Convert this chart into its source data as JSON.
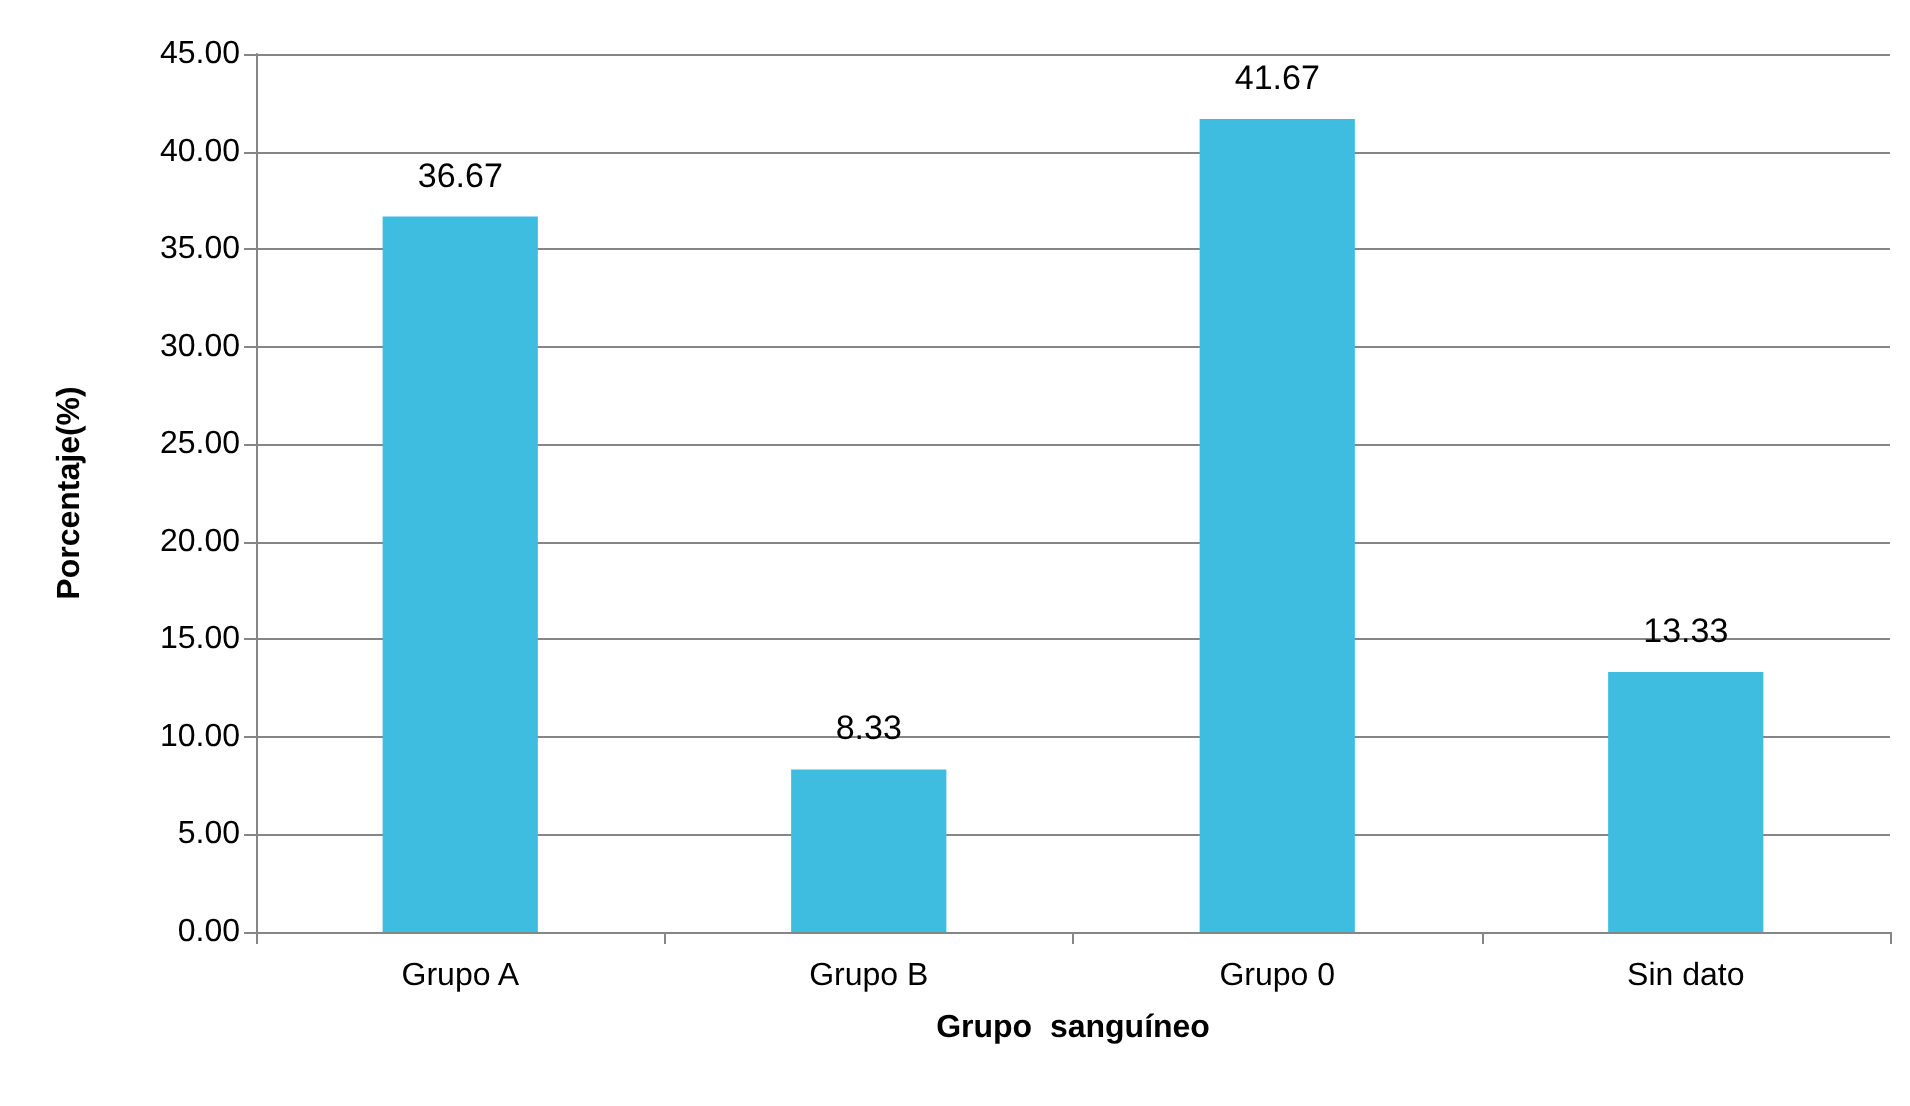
{
  "chart_data": {
    "type": "bar",
    "xlabel": "Grupo  sanguíneo",
    "ylabel": "Porcentaje(%)",
    "categories": [
      "Grupo A",
      "Grupo B",
      "Grupo 0",
      "Sin dato"
    ],
    "values": [
      36.67,
      8.33,
      41.67,
      13.33
    ],
    "color": "#3fbde0",
    "ylim": [
      0,
      45
    ],
    "yticks": [
      {
        "value": 0,
        "label": "0.00"
      },
      {
        "value": 5,
        "label": "5.00"
      },
      {
        "value": 10,
        "label": "10.00"
      },
      {
        "value": 15,
        "label": "15.00"
      },
      {
        "value": 20,
        "label": "20.00"
      },
      {
        "value": 25,
        "label": "25.00"
      },
      {
        "value": 30,
        "label": "30.00"
      },
      {
        "value": 35,
        "label": "35.00"
      },
      {
        "value": 40,
        "label": "40.00"
      },
      {
        "value": 45,
        "label": "45.00"
      }
    ],
    "grid": "y",
    "data_labels": true
  }
}
